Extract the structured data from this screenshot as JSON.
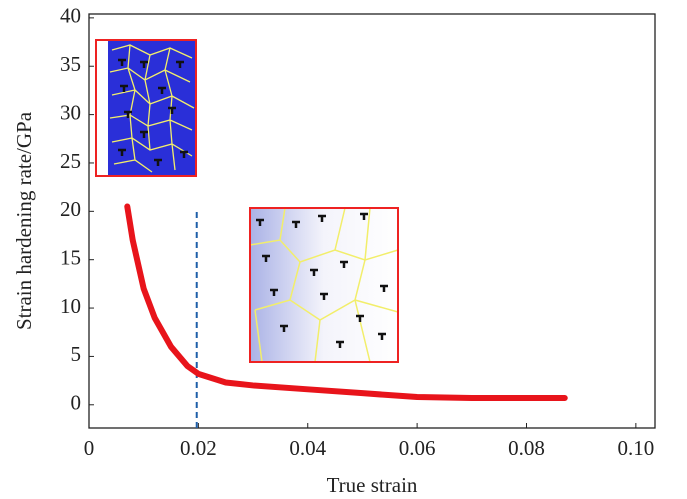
{
  "chart_data": {
    "type": "line",
    "x_label": "True strain",
    "y_label": "Strain hardening rate/GPa",
    "x": [
      0.007,
      0.008,
      0.01,
      0.012,
      0.015,
      0.018,
      0.02,
      0.025,
      0.03,
      0.04,
      0.05,
      0.06,
      0.07,
      0.08,
      0.087
    ],
    "series": [
      {
        "color": "#e8141b",
        "values": [
          20.5,
          17,
          12,
          9,
          6,
          4,
          3.2,
          2.3,
          2,
          1.6,
          1.2,
          0.8,
          0.7,
          0.7,
          0.7
        ]
      }
    ],
    "vline_x": 0.0197,
    "vline_color": "#1f5fa8",
    "xlim": [
      0,
      0.1035
    ],
    "ylim": [
      -2.4,
      40.4
    ],
    "xticks": [
      0,
      0.02,
      0.04,
      0.06,
      0.08,
      {
        "value": 0.1,
        "label": "0.10"
      }
    ],
    "yticks": [
      0,
      5,
      10,
      15,
      20,
      25,
      30,
      35,
      40
    ],
    "grid": false
  }
}
